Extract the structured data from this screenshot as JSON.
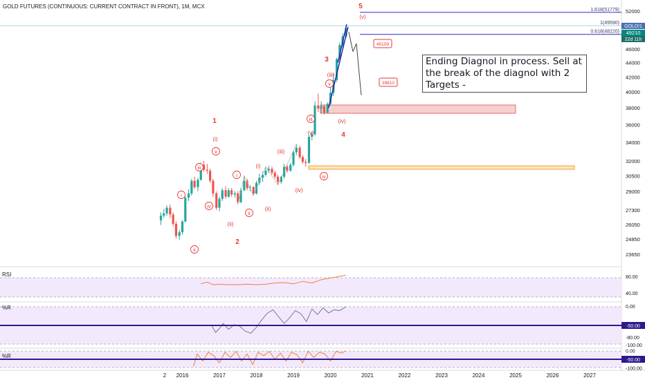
{
  "header": {
    "title": "GOLD FUTURES (CONTINUOUS: CURRENT CONTRACT IN FRONT), 1M, MCX"
  },
  "note": {
    "text": "Ending Diagnol in process. Sell at the break of the diagnol with 2 Targets -"
  },
  "panes": {
    "rsi_label": "RSI",
    "wr_label": "%R",
    "wr2_label": "%R"
  },
  "colors": {
    "up": "#26a69a",
    "down": "#ef5350",
    "wave_label": "#e53935",
    "channel": "#1a1aa6",
    "fib": "#2a2ad0",
    "price_tag": "#00897b",
    "indicator_fill": "#f3e9fc",
    "rsi_line": "#f57c3a",
    "wr_line": "#7a7a8a",
    "zone_fill": "#f8c9c9",
    "zone_border": "#e06060",
    "zone2_border": "#f0a030"
  },
  "chart_data": [
    {
      "type": "candlestick",
      "title": "GOLD FUTURES (CONTINUOUS: CURRENT CONTRACT IN FRONT), 1M, MCX",
      "x_ticks": [
        "2",
        "2016",
        "2017",
        "2018",
        "2019",
        "2020",
        "2021",
        "2022",
        "2023",
        "2024",
        "2025",
        "2026",
        "2027"
      ],
      "y_ticks": [
        "52000",
        "46000",
        "44000",
        "42000",
        "40000",
        "38000",
        "36000",
        "34000",
        "32000",
        "30500",
        "29000",
        "27300",
        "26050",
        "24850",
        "23650"
      ],
      "ylim": [
        23000,
        52500
      ],
      "y_scale": "log",
      "price_tags": {
        "last_price": "49210",
        "countdown": "22d 11h",
        "gold_label": "GOLD!1"
      },
      "fib_levels": [
        {
          "label": "1.618(51779)",
          "value": 51779
        },
        {
          "label": "1(49590)",
          "value": 49590
        },
        {
          "label": "0.618(48220)",
          "value": 48220
        }
      ],
      "targets": [
        {
          "label": "45109",
          "value": 45109
        },
        {
          "label": "39610",
          "value": 39610
        }
      ],
      "wave_labels": [
        "1",
        "2",
        "3",
        "4",
        "5",
        "i",
        "ii",
        "iii",
        "iv",
        "v",
        "(i)",
        "(ii)",
        "(iii)",
        "(iv)",
        "(v)"
      ],
      "candles": [
        {
          "t": 2015.42,
          "o": 26400,
          "h": 27100,
          "l": 26000,
          "c": 26800
        },
        {
          "t": 2015.5,
          "o": 26800,
          "h": 27400,
          "l": 26600,
          "c": 27000
        },
        {
          "t": 2015.58,
          "o": 27000,
          "h": 27700,
          "l": 26800,
          "c": 27500
        },
        {
          "t": 2015.67,
          "o": 27500,
          "h": 27800,
          "l": 26600,
          "c": 26900
        },
        {
          "t": 2015.75,
          "o": 26900,
          "h": 27100,
          "l": 25900,
          "c": 26100
        },
        {
          "t": 2015.83,
          "o": 26100,
          "h": 26300,
          "l": 24900,
          "c": 25100
        },
        {
          "t": 2015.92,
          "o": 25100,
          "h": 25600,
          "l": 24800,
          "c": 25400
        },
        {
          "t": 2016.0,
          "o": 25400,
          "h": 26400,
          "l": 25200,
          "c": 26300
        },
        {
          "t": 2016.08,
          "o": 26300,
          "h": 28500,
          "l": 26200,
          "c": 28400
        },
        {
          "t": 2016.17,
          "o": 28400,
          "h": 29200,
          "l": 28100,
          "c": 28800
        },
        {
          "t": 2016.25,
          "o": 28800,
          "h": 30200,
          "l": 28600,
          "c": 30000
        },
        {
          "t": 2016.33,
          "o": 30000,
          "h": 30400,
          "l": 29200,
          "c": 29400
        },
        {
          "t": 2016.42,
          "o": 29400,
          "h": 30300,
          "l": 29000,
          "c": 30100
        },
        {
          "t": 2016.5,
          "o": 30100,
          "h": 31800,
          "l": 30000,
          "c": 31600
        },
        {
          "t": 2016.58,
          "o": 31600,
          "h": 32000,
          "l": 30900,
          "c": 31100
        },
        {
          "t": 2016.67,
          "o": 31100,
          "h": 31700,
          "l": 30700,
          "c": 31000
        },
        {
          "t": 2016.75,
          "o": 31000,
          "h": 31200,
          "l": 29800,
          "c": 30000
        },
        {
          "t": 2016.83,
          "o": 30000,
          "h": 30200,
          "l": 28500,
          "c": 28800
        },
        {
          "t": 2016.92,
          "o": 28800,
          "h": 29000,
          "l": 27300,
          "c": 27500
        },
        {
          "t": 2017.0,
          "o": 27500,
          "h": 28500,
          "l": 27200,
          "c": 28300
        },
        {
          "t": 2017.08,
          "o": 28300,
          "h": 29300,
          "l": 28100,
          "c": 29100
        },
        {
          "t": 2017.17,
          "o": 29100,
          "h": 29500,
          "l": 28300,
          "c": 28500
        },
        {
          "t": 2017.25,
          "o": 28500,
          "h": 29300,
          "l": 28400,
          "c": 29100
        },
        {
          "t": 2017.33,
          "o": 29100,
          "h": 29300,
          "l": 28500,
          "c": 28700
        },
        {
          "t": 2017.42,
          "o": 28700,
          "h": 29000,
          "l": 28400,
          "c": 28800
        },
        {
          "t": 2017.5,
          "o": 28800,
          "h": 29000,
          "l": 27800,
          "c": 28000
        },
        {
          "t": 2017.58,
          "o": 28000,
          "h": 29300,
          "l": 27900,
          "c": 29100
        },
        {
          "t": 2017.67,
          "o": 29100,
          "h": 30500,
          "l": 29000,
          "c": 30000
        },
        {
          "t": 2017.75,
          "o": 30000,
          "h": 30200,
          "l": 29100,
          "c": 29300
        },
        {
          "t": 2017.83,
          "o": 29300,
          "h": 29600,
          "l": 29000,
          "c": 29400
        },
        {
          "t": 2017.92,
          "o": 29400,
          "h": 29500,
          "l": 28600,
          "c": 28800
        },
        {
          "t": 2018.0,
          "o": 28800,
          "h": 30000,
          "l": 28700,
          "c": 29800
        },
        {
          "t": 2018.08,
          "o": 29800,
          "h": 30700,
          "l": 29600,
          "c": 30300
        },
        {
          "t": 2018.17,
          "o": 30300,
          "h": 30900,
          "l": 29900,
          "c": 30600
        },
        {
          "t": 2018.25,
          "o": 30600,
          "h": 31400,
          "l": 30400,
          "c": 31000
        },
        {
          "t": 2018.33,
          "o": 31000,
          "h": 31500,
          "l": 30800,
          "c": 31200
        },
        {
          "t": 2018.42,
          "o": 31200,
          "h": 31400,
          "l": 30600,
          "c": 30800
        },
        {
          "t": 2018.5,
          "o": 30800,
          "h": 31000,
          "l": 30200,
          "c": 30400
        },
        {
          "t": 2018.58,
          "o": 30400,
          "h": 30600,
          "l": 29600,
          "c": 29900
        },
        {
          "t": 2018.67,
          "o": 29900,
          "h": 30500,
          "l": 29700,
          "c": 30400
        },
        {
          "t": 2018.75,
          "o": 30400,
          "h": 31700,
          "l": 30200,
          "c": 31400
        },
        {
          "t": 2018.83,
          "o": 31400,
          "h": 31600,
          "l": 30800,
          "c": 31000
        },
        {
          "t": 2018.92,
          "o": 31000,
          "h": 31800,
          "l": 30900,
          "c": 31600
        },
        {
          "t": 2019.0,
          "o": 31600,
          "h": 33100,
          "l": 31400,
          "c": 32900
        },
        {
          "t": 2019.08,
          "o": 32900,
          "h": 33800,
          "l": 32600,
          "c": 33400
        },
        {
          "t": 2019.17,
          "o": 33400,
          "h": 33600,
          "l": 32200,
          "c": 32400
        },
        {
          "t": 2019.25,
          "o": 32400,
          "h": 32600,
          "l": 31700,
          "c": 31900
        },
        {
          "t": 2019.33,
          "o": 31900,
          "h": 32200,
          "l": 31400,
          "c": 31800
        },
        {
          "t": 2019.42,
          "o": 31800,
          "h": 34800,
          "l": 31700,
          "c": 34600
        },
        {
          "t": 2019.5,
          "o": 34600,
          "h": 35200,
          "l": 34200,
          "c": 34900
        },
        {
          "t": 2019.58,
          "o": 34900,
          "h": 38800,
          "l": 34700,
          "c": 38300
        },
        {
          "t": 2019.67,
          "o": 38300,
          "h": 39800,
          "l": 37500,
          "c": 37900
        },
        {
          "t": 2019.75,
          "o": 37900,
          "h": 38800,
          "l": 37300,
          "c": 38200
        },
        {
          "t": 2019.83,
          "o": 38200,
          "h": 38400,
          "l": 37200,
          "c": 37400
        },
        {
          "t": 2019.92,
          "o": 37400,
          "h": 38700,
          "l": 37300,
          "c": 38500
        },
        {
          "t": 2020.0,
          "o": 38500,
          "h": 40600,
          "l": 38300,
          "c": 39900
        },
        {
          "t": 2020.08,
          "o": 39900,
          "h": 42500,
          "l": 39500,
          "c": 41600
        },
        {
          "t": 2020.17,
          "o": 41600,
          "h": 44700,
          "l": 41300,
          "c": 44500
        },
        {
          "t": 2020.25,
          "o": 44500,
          "h": 47000,
          "l": 44200,
          "c": 46600
        },
        {
          "t": 2020.33,
          "o": 46600,
          "h": 48400,
          "l": 46200,
          "c": 47900
        },
        {
          "t": 2020.42,
          "o": 47900,
          "h": 49600,
          "l": 47600,
          "c": 49210
        }
      ]
    },
    {
      "type": "line",
      "title": "RSI",
      "y_ticks": [
        "80.00",
        "40.00"
      ],
      "ylim": [
        20,
        100
      ],
      "series": [
        {
          "x": [
            2016.5,
            2016.67,
            2016.83,
            2017.0,
            2017.25,
            2017.5,
            2017.75,
            2018.0,
            2018.25,
            2018.5,
            2018.75,
            2019.0,
            2019.25,
            2019.5,
            2019.75,
            2020.0,
            2020.25,
            2020.42
          ],
          "y": [
            62,
            66,
            60,
            61,
            60,
            60,
            61,
            60,
            61,
            64,
            65,
            62,
            68,
            64,
            72,
            76,
            80,
            83
          ]
        }
      ]
    },
    {
      "type": "line",
      "title": "%R",
      "y_ticks": [
        "0.00",
        "-50.00",
        "-80.00",
        "-100.00"
      ],
      "ylim": [
        -105,
        5
      ],
      "highlight_value": "-50.00",
      "series": [
        {
          "x": [
            2016.8,
            2016.9,
            2017.0,
            2017.1,
            2017.25,
            2017.4,
            2017.55,
            2017.7,
            2017.85,
            2018.0,
            2018.15,
            2018.3,
            2018.45,
            2018.6,
            2018.75,
            2018.9,
            2019.05,
            2019.2,
            2019.35,
            2019.5,
            2019.65,
            2019.8,
            2019.95,
            2020.1,
            2020.25,
            2020.42
          ],
          "y": [
            -52,
            -68,
            -58,
            -45,
            -60,
            -48,
            -52,
            -65,
            -70,
            -55,
            -35,
            -18,
            -10,
            -28,
            -45,
            -30,
            -12,
            -20,
            -40,
            -8,
            -22,
            -5,
            -18,
            -10,
            -12,
            -2
          ]
        }
      ]
    },
    {
      "type": "line",
      "title": "%R",
      "y_ticks": [
        "0.00",
        "-50.00",
        "-100.00"
      ],
      "ylim": [
        -105,
        5
      ],
      "highlight_value": "-50.00",
      "series": [
        {
          "x": [
            2016.3,
            2016.4,
            2016.55,
            2016.7,
            2016.85,
            2017.0,
            2017.15,
            2017.3,
            2017.45,
            2017.6,
            2017.75,
            2017.9,
            2018.05,
            2018.2,
            2018.35,
            2018.5,
            2018.65,
            2018.8,
            2018.95,
            2019.1,
            2019.25,
            2019.4,
            2019.55,
            2019.7,
            2019.85,
            2020.0,
            2020.15,
            2020.3,
            2020.42
          ],
          "y": [
            -90,
            -20,
            -60,
            -10,
            -30,
            -70,
            -10,
            -40,
            -5,
            -60,
            -20,
            -80,
            -10,
            -30,
            -5,
            -50,
            -15,
            -60,
            -10,
            -25,
            -70,
            -5,
            -40,
            -10,
            -20,
            -60,
            -5,
            -15,
            -2
          ]
        }
      ]
    }
  ]
}
